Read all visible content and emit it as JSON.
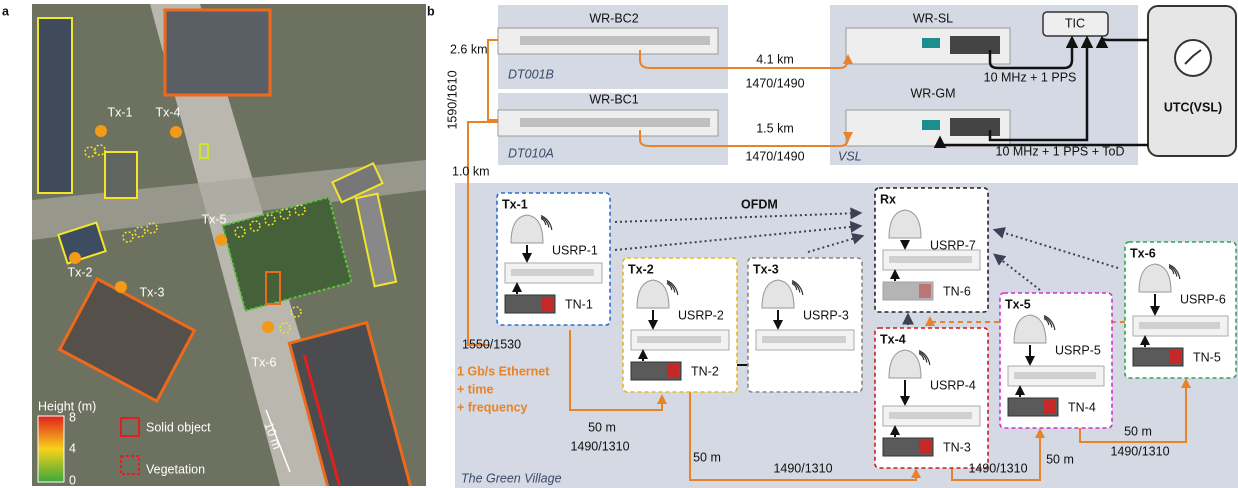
{
  "panel_a": {
    "label": "a",
    "transmitters": [
      "Tx-1",
      "Tx-4",
      "Tx-5",
      "Tx-2",
      "Tx-3",
      "Tx-6"
    ],
    "colorbar": {
      "title": "Height (m)",
      "ticks": [
        "8",
        "4",
        "0"
      ]
    },
    "legend": [
      "Solid object",
      "Vegetation"
    ],
    "scale_bar": "10 m"
  },
  "panel_b": {
    "label": "b",
    "sites": [
      {
        "device": "WR-BC2",
        "site": "DT001B"
      },
      {
        "device": "WR-BC1",
        "site": "DT010A"
      },
      {
        "devices": [
          "WR-SL",
          "WR-GM"
        ],
        "site": "VSL"
      }
    ],
    "tic": "TIC",
    "utc": "UTC(VSL)",
    "fiber_links": [
      {
        "distance": "2.6 km"
      },
      {
        "wavelengths": "1590/1610"
      },
      {
        "distance": "4.1 km",
        "wavelengths": "1470/1490"
      },
      {
        "distance": "1.5 km",
        "wavelengths": "1470/1490"
      },
      {
        "distance": "1.0 km",
        "wavelengths": "1550/1530"
      }
    ],
    "timing": [
      "10 MHz + 1 PPS",
      "10 MHz + 1 PPS + ToD"
    ],
    "area": "The Green Village",
    "ofdm": "OFDM",
    "backhaul_note": [
      "1 Gb/s Ethernet",
      "+ time",
      "+ frequency"
    ],
    "nodes": [
      {
        "name": "Tx-1",
        "radio": "USRP-1",
        "switch": "TN-1"
      },
      {
        "name": "Tx-2",
        "radio": "USRP-2",
        "switch": "TN-2"
      },
      {
        "name": "Tx-3",
        "radio": "USRP-3"
      },
      {
        "name": "Rx",
        "radio": "USRP-7",
        "switch": "TN-6"
      },
      {
        "name": "Tx-4",
        "radio": "USRP-4",
        "switch": "TN-3"
      },
      {
        "name": "Tx-5",
        "radio": "USRP-5",
        "switch": "TN-4"
      },
      {
        "name": "Tx-6",
        "radio": "USRP-6",
        "switch": "TN-5"
      }
    ],
    "node_links": [
      {
        "distance": "50 m",
        "wavelengths": "1490/1310"
      },
      {
        "distance": "50 m",
        "wavelengths": "1490/1310"
      },
      {
        "distance": "50 m",
        "wavelengths": "1490/1310"
      },
      {
        "distance": "50 m",
        "wavelengths": "1490/1310"
      }
    ]
  }
}
